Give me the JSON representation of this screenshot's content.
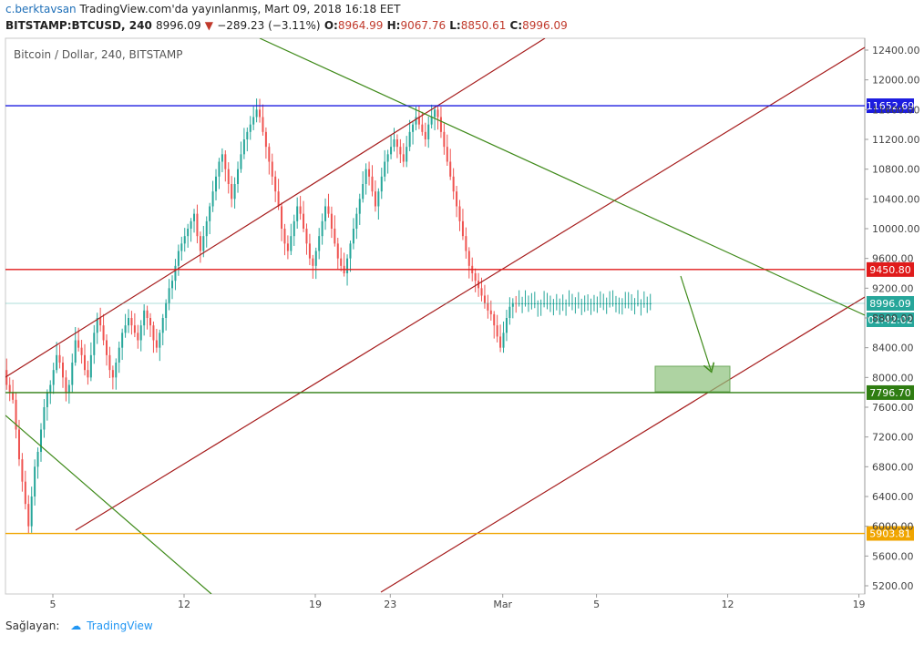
{
  "header": {
    "author": "c.berktavsan",
    "published": " TradingView.com'da yayınlanmış, Mart 09, 2018 16:18 EET",
    "symbol": "BITSTAMP:BTCUSD, 240",
    "last": "8996.09",
    "change": "−289.23 (−3.11%)",
    "open_label": "O:",
    "open": "8964.99",
    "high_label": "H:",
    "high": "9067.76",
    "low_label": "L:",
    "low": "8850.61",
    "close_label": "C:",
    "close": "8996.09"
  },
  "legend_title": "Bitcoin / Dollar, 240, BITSTAMP",
  "footer": {
    "label": "Sağlayan:",
    "brand": "TradingView"
  },
  "colors": {
    "up": "#26a69a",
    "down": "#ef5350",
    "blue_line": "#1c1ce0",
    "red_line": "#e01b1b",
    "green_line": "#2f7d12",
    "orange_line": "#f0a500",
    "channel": "#a61c1c",
    "trend": "#3f8a1a",
    "box": "#8bc07a"
  },
  "chart_data": {
    "type": "candlestick",
    "title": "Bitcoin / Dollar, 240, BITSTAMP",
    "ylim": [
      5000,
      12600
    ],
    "y_ticks": [
      5200,
      5600,
      6000,
      6400,
      6800,
      7200,
      7600,
      8000,
      8400,
      8800,
      9200,
      9600,
      10000,
      10400,
      10800,
      11200,
      11600,
      12000,
      12400
    ],
    "x_ticks": [
      "5",
      "12",
      "19",
      "23",
      "Mar",
      "5",
      "12",
      "19"
    ],
    "x_tick_days": [
      5,
      12,
      19,
      23,
      29,
      34,
      41,
      48
    ],
    "candle_days": [
      0.0,
      0.166,
      0.333,
      0.5,
      0.667,
      0.833,
      1.0,
      1.166,
      1.333,
      1.5,
      1.667,
      1.833,
      2.0,
      2.166,
      2.333,
      2.5,
      2.667,
      2.833,
      3.0,
      3.166,
      3.333,
      3.5,
      3.667,
      3.833,
      4.0,
      4.166,
      4.333,
      4.5,
      4.667,
      4.833,
      5.0,
      5.166,
      5.333,
      5.5,
      5.667,
      5.833,
      6.0,
      6.166,
      6.333,
      6.5,
      6.667,
      6.833,
      7.0,
      7.166,
      7.333,
      7.5,
      7.667,
      7.833,
      8.0,
      8.166,
      8.333,
      8.5,
      8.667,
      8.833,
      9.0,
      9.166,
      9.333,
      9.5,
      9.667,
      9.833,
      10.0,
      10.166,
      10.333,
      10.5,
      10.667,
      10.833,
      11.0,
      11.166,
      11.333,
      11.5,
      11.667,
      11.833,
      12.0,
      12.166,
      12.333,
      12.5,
      12.667,
      12.833,
      13.0,
      13.166,
      13.333,
      13.5,
      13.667,
      13.833,
      14.0,
      14.166,
      14.333,
      14.5,
      14.667,
      14.833,
      15.0,
      15.166,
      15.333,
      15.5,
      15.667,
      15.833,
      16.0,
      16.166,
      16.333,
      16.5,
      16.667,
      16.833,
      17.0,
      17.166,
      17.333,
      17.5,
      17.667,
      17.833,
      18.0,
      18.166,
      18.333,
      18.5,
      18.667,
      18.833,
      19.0,
      19.166,
      19.333,
      19.5,
      19.667,
      19.833,
      20.0,
      20.166,
      20.333,
      20.5,
      20.667,
      20.833,
      21.0,
      21.166,
      21.333,
      21.5,
      21.667,
      21.833,
      22.0,
      22.166,
      22.333,
      22.5,
      22.667,
      22.833,
      23.0,
      23.166,
      23.333,
      23.5,
      23.667,
      23.833,
      24.0,
      24.166,
      24.333,
      24.5,
      24.667,
      24.833,
      25.0,
      25.166,
      25.333,
      25.5,
      25.667,
      25.833,
      26.0,
      26.166,
      26.333,
      26.5,
      26.667,
      26.833,
      27.0,
      27.166,
      27.333,
      27.5,
      27.667,
      27.833,
      28.0,
      28.166,
      28.333,
      28.5,
      28.667,
      28.833,
      29.0,
      29.166,
      29.333,
      29.5,
      29.667,
      29.833,
      30.0,
      30.166,
      30.333,
      30.5,
      30.667,
      30.833,
      31.0,
      31.166,
      31.333,
      31.5,
      31.667,
      31.833,
      32.0,
      32.166,
      32.333,
      32.5,
      32.667,
      32.833,
      33.0,
      33.166,
      33.333,
      33.5,
      33.667,
      33.833,
      34.0,
      34.166,
      34.333,
      34.5,
      34.667,
      34.833,
      35.0,
      35.166,
      35.333,
      35.5,
      35.667,
      35.833,
      36.0,
      36.166,
      36.333,
      36.5,
      36.667,
      36.833,
      37.0,
      37.166,
      37.333,
      37.5,
      37.667,
      37.833,
      38.0,
      38.166,
      38.333,
      38.5
    ],
    "close_path": [
      8900,
      8700,
      8500,
      8650,
      8800,
      8900,
      9100,
      9300,
      9000,
      8800,
      8700,
      8500,
      8300,
      8100,
      7900,
      7800,
      7700,
      7300,
      6900,
      6600,
      6300,
      6000,
      6400,
      6800,
      7000,
      7300,
      7600,
      7800,
      7900,
      8100,
      8300,
      8200,
      8000,
      7800,
      7900,
      8200,
      8500,
      8400,
      8300,
      8100,
      8000,
      8300,
      8600,
      8800,
      8700,
      8500,
      8300,
      8100,
      8000,
      8200,
      8400,
      8600,
      8700,
      8800,
      8700,
      8600,
      8500,
      8700,
      8900,
      8800,
      8700,
      8500,
      8400,
      8600,
      8800,
      9000,
      9200,
      9300,
      9500,
      9700,
      9800,
      9900,
      10000,
      10100,
      10200,
      9900,
      9700,
      9900,
      10100,
      10300,
      10500,
      10700,
      10900,
      11000,
      10800,
      10600,
      10400,
      10600,
      10800,
      11000,
      11200,
      11300,
      11400,
      11500,
      11600,
      11500,
      11300,
      11100,
      10900,
      10700,
      10500,
      10300,
      10000,
      9800,
      9700,
      9900,
      10100,
      10300,
      10200,
      10000,
      9800,
      9600,
      9500,
      9700,
      9900,
      10100,
      10300,
      10200,
      10000,
      9800,
      9600,
      9500,
      9400,
      9600,
      9800,
      10000,
      10200,
      10400,
      10600,
      10800,
      10700,
      10500,
      10300,
      10500,
      10700,
      10900,
      11000,
      11100,
      11200,
      11100,
      11000,
      10900,
      11100,
      11300,
      11400,
      11500,
      11400,
      11300,
      11200,
      11400,
      11500,
      11600,
      11500,
      11300,
      11100,
      10900,
      10700,
      10500,
      10300,
      10100,
      9900,
      9700,
      9500,
      9400,
      9300,
      9200,
      9100,
      9000,
      8900,
      8850,
      8700,
      8550,
      8400,
      8600,
      8800,
      8950,
      9000,
      8996,
      8996,
      8996,
      8996,
      8996,
      8996,
      8996,
      8996,
      8996,
      8996,
      8996,
      8996,
      8996,
      8996,
      8996,
      8996,
      8996,
      8996,
      8996,
      8996,
      8996,
      8996,
      8996,
      8996,
      8996,
      8996,
      8996,
      8996,
      8996,
      8996,
      8996,
      8996,
      8996,
      8996,
      8996,
      8996,
      8996,
      8996,
      8996,
      8996,
      8996,
      8996,
      8996,
      8996,
      8996,
      8996,
      8996,
      8996,
      8996,
      8996,
      8996
    ],
    "levels": [
      {
        "name": "resistance",
        "value": 11652.69,
        "label": "11652.69",
        "color": "blue_line"
      },
      {
        "name": "support-upper",
        "value": 9450.8,
        "label": "9450.80",
        "color": "red_line"
      },
      {
        "name": "support-lower",
        "value": 7796.7,
        "label": "7796.70",
        "color": "green_line"
      },
      {
        "name": "low",
        "value": 5903.81,
        "label": "5903.81",
        "color": "orange_line"
      }
    ],
    "last_price": {
      "value": 8996.09,
      "label": "8996.09",
      "countdown": "01:42:02"
    }
  }
}
